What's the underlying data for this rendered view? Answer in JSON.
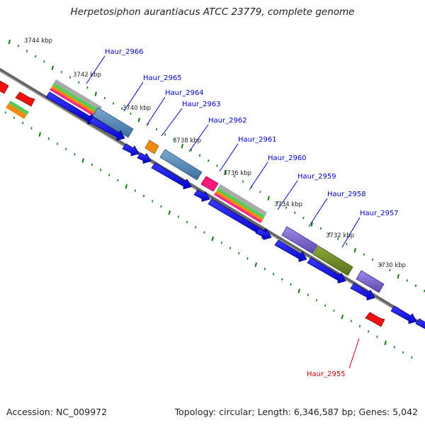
{
  "header": {
    "title": "Herpetosiphon aurantiacus ATCC 23779, complete genome"
  },
  "footer": {
    "accession": "Accession: NC_009972",
    "stats": "Topology: circular; Length: 6,346,587 bp; Genes: 5,042"
  },
  "colors": {
    "backbone": "#8a8a8a",
    "tick": "#117711",
    "cds": "#1010ee",
    "highlight": "#ee0000",
    "link": "#0000cc",
    "link_highlight": "#cc0000"
  },
  "scale_ticks": [
    {
      "label": "3744 kbp"
    },
    {
      "label": "3742 kbp"
    },
    {
      "label": "3740 kbp"
    },
    {
      "label": "3738 kbp"
    },
    {
      "label": "3736 kbp"
    },
    {
      "label": "3734 kbp"
    },
    {
      "label": "3732 kbp"
    },
    {
      "label": "3730 kbp"
    }
  ],
  "gene_labels": [
    {
      "name": "Haur_2966",
      "color": "#0000cc"
    },
    {
      "name": "Haur_2965",
      "color": "#0000cc"
    },
    {
      "name": "Haur_2964",
      "color": "#0000cc"
    },
    {
      "name": "Haur_2963",
      "color": "#0000cc"
    },
    {
      "name": "Haur_2962",
      "color": "#0000cc"
    },
    {
      "name": "Haur_2961",
      "color": "#0000cc"
    },
    {
      "name": "Haur_2960",
      "color": "#0000cc"
    },
    {
      "name": "Haur_2959",
      "color": "#0000cc"
    },
    {
      "name": "Haur_2958",
      "color": "#0000cc"
    },
    {
      "name": "Haur_2957",
      "color": "#0000cc"
    },
    {
      "name": "Haur_2955",
      "color": "#cc0000"
    }
  ]
}
